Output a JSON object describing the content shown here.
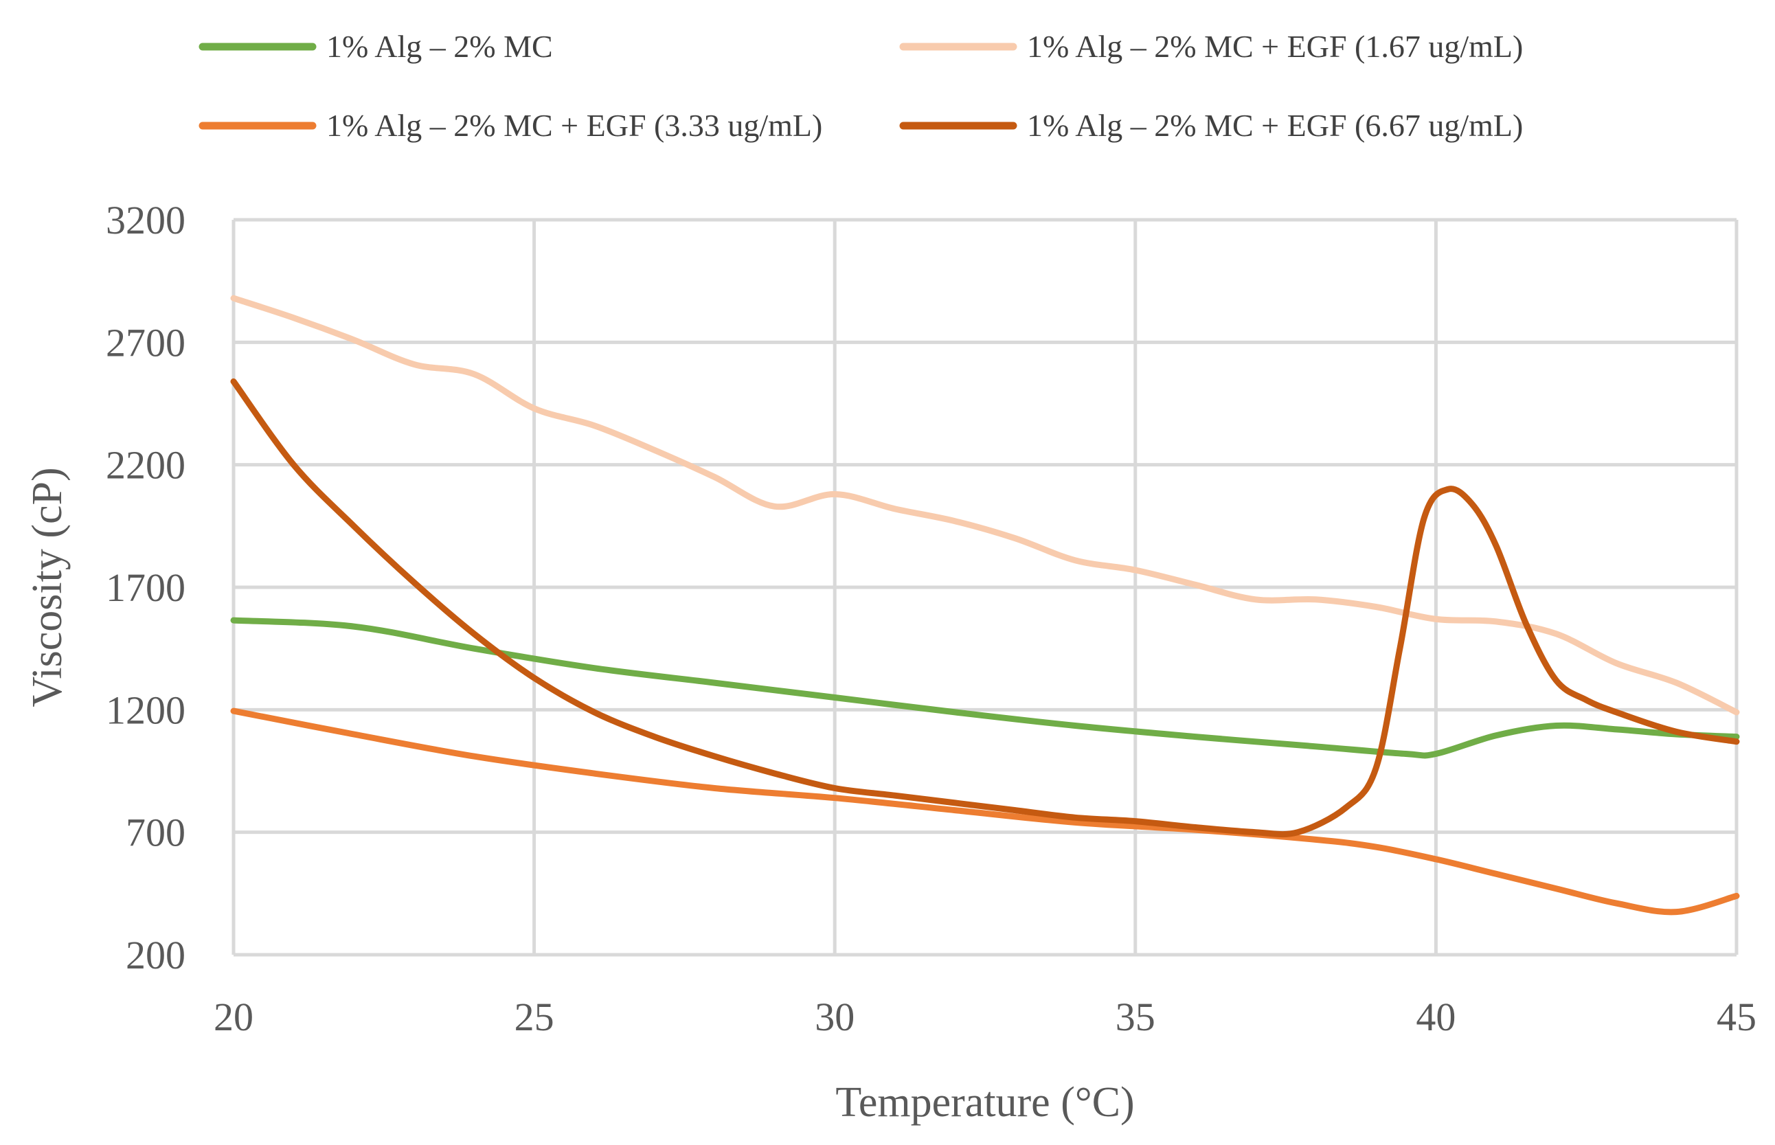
{
  "chart_data": {
    "type": "line",
    "title": "",
    "xlabel": "Temperature (°C)",
    "ylabel": "Viscosity (cP)",
    "xlim": [
      20,
      45
    ],
    "ylim": [
      200,
      3200
    ],
    "x_ticks": [
      20,
      25,
      30,
      35,
      40,
      45
    ],
    "y_ticks": [
      200,
      700,
      1200,
      1700,
      2200,
      2700,
      3200
    ],
    "x_tick_labels": [
      "20",
      "25",
      "30",
      "35",
      "40",
      "45"
    ],
    "y_tick_labels": [
      "200",
      "700",
      "1200",
      "1700",
      "2200",
      "2700",
      "3200"
    ],
    "grid": true,
    "legend_position": "top",
    "series": [
      {
        "name": "1% Alg – 2% MC",
        "color": "#70ad47",
        "x": [
          20,
          22,
          24,
          26,
          28,
          30,
          32,
          34,
          36,
          38,
          39.5,
          40,
          41,
          42,
          43,
          44,
          45
        ],
        "y": [
          1565,
          1540,
          1450,
          1370,
          1310,
          1250,
          1190,
          1135,
          1090,
          1050,
          1020,
          1020,
          1095,
          1135,
          1120,
          1100,
          1090
        ]
      },
      {
        "name": "1% Alg – 2% MC + EGF (1.67 ug/mL)",
        "color": "#f8cbad",
        "x": [
          20,
          21,
          22,
          23,
          24,
          25,
          26,
          27,
          28,
          29,
          30,
          31,
          32,
          33,
          34,
          35,
          36,
          37,
          38,
          39,
          40,
          41,
          42,
          43,
          44,
          45
        ],
        "y": [
          2880,
          2800,
          2710,
          2610,
          2570,
          2430,
          2360,
          2260,
          2150,
          2030,
          2080,
          2020,
          1970,
          1900,
          1810,
          1770,
          1710,
          1650,
          1650,
          1620,
          1570,
          1560,
          1510,
          1390,
          1310,
          1190
        ]
      },
      {
        "name": "1% Alg – 2% MC + EGF (3.33 ug/mL)",
        "color": "#ed7d31",
        "x": [
          20,
          22,
          24,
          26,
          28,
          30,
          32,
          34,
          36,
          38,
          39,
          40,
          41,
          42,
          43,
          44,
          45
        ],
        "y": [
          1195,
          1100,
          1010,
          940,
          880,
          840,
          790,
          740,
          710,
          670,
          640,
          590,
          530,
          470,
          410,
          375,
          440
        ]
      },
      {
        "name": "1% Alg – 2% MC + EGF (6.67 ug/mL)",
        "color": "#c55a11",
        "x": [
          20,
          21,
          22,
          23,
          24,
          25,
          26,
          27,
          28,
          29,
          30,
          31,
          32,
          33,
          34,
          35,
          36,
          37,
          37.7,
          38.5,
          39,
          39.4,
          39.8,
          40.2,
          40.6,
          41,
          41.5,
          42,
          42.5,
          43,
          44,
          45
        ],
        "y": [
          2540,
          2200,
          1950,
          1720,
          1510,
          1330,
          1190,
          1090,
          1010,
          940,
          880,
          850,
          820,
          790,
          760,
          745,
          720,
          700,
          700,
          800,
          960,
          1450,
          1980,
          2100,
          2040,
          1870,
          1550,
          1320,
          1240,
          1190,
          1110,
          1070
        ]
      }
    ]
  }
}
